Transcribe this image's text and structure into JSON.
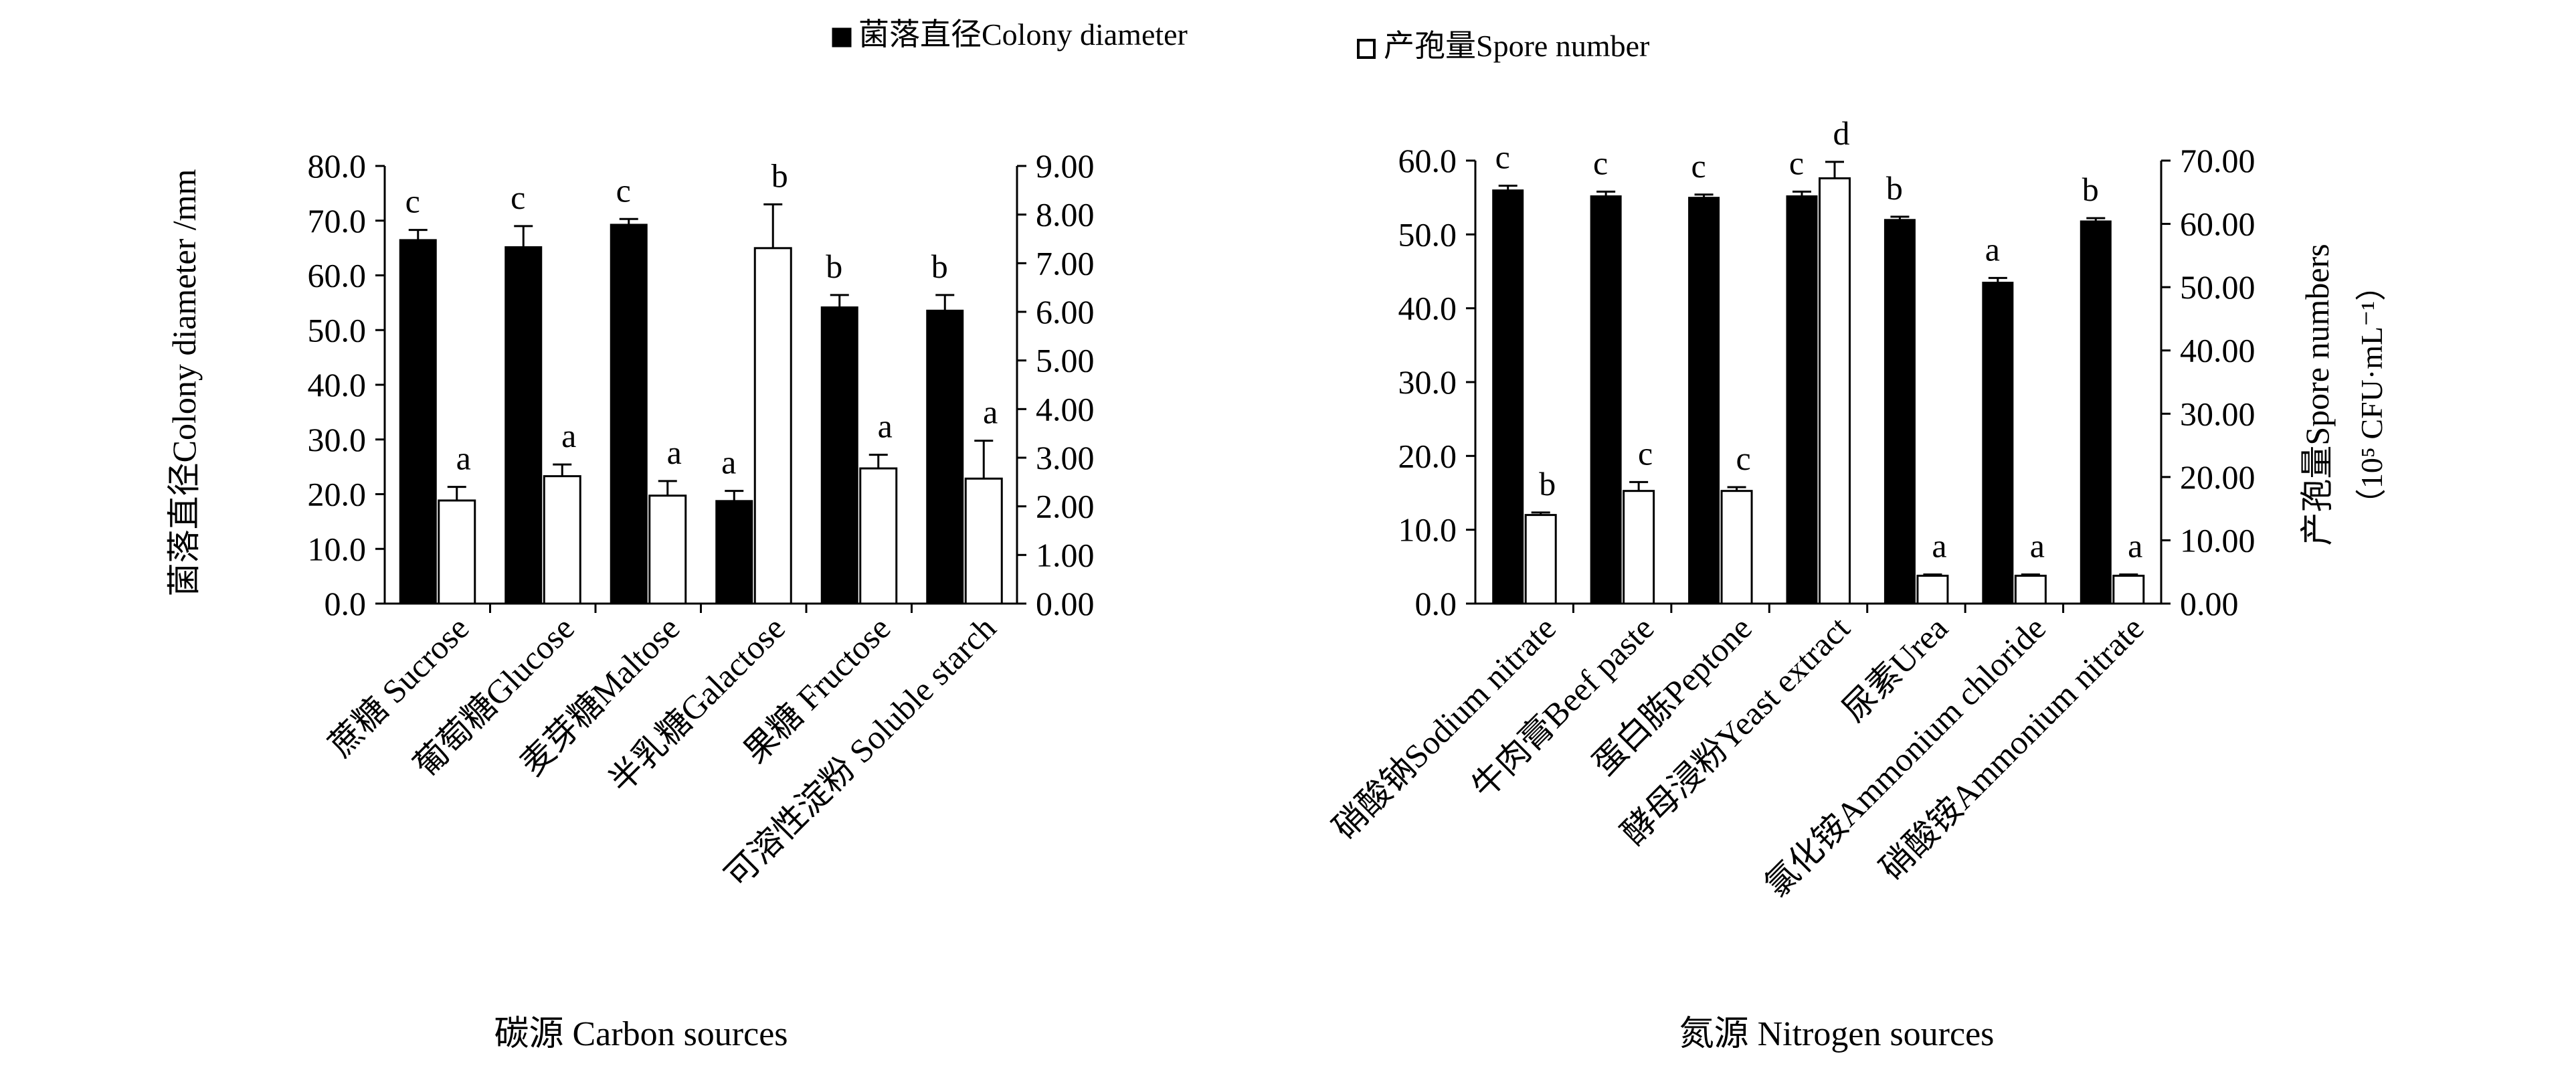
{
  "legend": {
    "items": [
      {
        "label": "菌落直径Colony diameter",
        "fill": "#000000"
      },
      {
        "label": "产孢量Spore number",
        "fill": "#ffffff"
      }
    ]
  },
  "chart_data": [
    {
      "type": "bar",
      "xlabel": "碳源 Carbon sources",
      "ylabel": "菌落直径Colony diameter /mm",
      "y2label": "",
      "y2label_unit": "",
      "ylim": [
        0,
        80
      ],
      "yticks": [
        "0.0",
        "10.0",
        "20.0",
        "30.0",
        "40.0",
        "50.0",
        "60.0",
        "70.0",
        "80.0"
      ],
      "y2lim": [
        0,
        9
      ],
      "y2ticks": [
        "0.00",
        "1.00",
        "2.00",
        "3.00",
        "4.00",
        "5.00",
        "6.00",
        "7.00",
        "8.00",
        "9.00"
      ],
      "categories": [
        "蔗糖 Sucrose",
        "葡萄糖Glucose",
        "麦芽糖Maltose",
        "半乳糖Galactose",
        "果糖 Fructose",
        "可溶性淀粉 Soluble starch"
      ],
      "series": [
        {
          "name": "菌落直径Colony diameter",
          "axis": "left",
          "fill": "#000000",
          "values": [
            66.5,
            65.2,
            69.3,
            18.8,
            54.2,
            53.6
          ],
          "errors": [
            1.8,
            3.8,
            1.0,
            1.8,
            2.2,
            2.8
          ],
          "letters": [
            "c",
            "c",
            "c",
            "a",
            "b",
            "b"
          ]
        },
        {
          "name": "产孢量Spore number",
          "axis": "right",
          "fill": "#ffffff",
          "values": [
            2.12,
            2.62,
            2.22,
            7.31,
            2.78,
            2.57
          ],
          "errors": [
            0.28,
            0.24,
            0.3,
            0.9,
            0.28,
            0.78
          ],
          "letters": [
            "a",
            "a",
            "a",
            "b",
            "a",
            "a"
          ]
        }
      ]
    },
    {
      "type": "bar",
      "xlabel": "氮源 Nitrogen sources",
      "ylabel": "",
      "y2label": "产孢量Spore numbers",
      "y2label_unit": "（10⁵ CFU·mL⁻¹）",
      "ylim": [
        0,
        60
      ],
      "yticks": [
        "0.0",
        "10.0",
        "20.0",
        "30.0",
        "40.0",
        "50.0",
        "60.0"
      ],
      "y2lim": [
        0,
        70
      ],
      "y2ticks": [
        "0.00",
        "10.00",
        "20.00",
        "30.00",
        "40.00",
        "50.00",
        "60.00",
        "70.00"
      ],
      "categories": [
        "硝酸钠Sodium nitrate",
        "牛肉膏Beef paste",
        "蛋白胨Peptone",
        "酵母浸粉Yeast extract",
        "尿素Urea",
        "氯化铵Ammonium chloride",
        "硝酸铵Ammonium nitrate"
      ],
      "series": [
        {
          "name": "菌落直径Colony diameter",
          "axis": "left",
          "fill": "#000000",
          "values": [
            56.0,
            55.2,
            55.0,
            55.2,
            52.0,
            43.5,
            51.8
          ],
          "errors": [
            0.6,
            0.6,
            0.4,
            0.6,
            0.4,
            0.6,
            0.4
          ],
          "letters": [
            "c",
            "c",
            "c",
            "c",
            "b",
            "a",
            "b"
          ]
        },
        {
          "name": "产孢量Spore number",
          "axis": "right",
          "fill": "#ffffff",
          "values": [
            14.0,
            17.8,
            17.8,
            67.2,
            4.4,
            4.4,
            4.4
          ],
          "errors": [
            0.4,
            1.4,
            0.6,
            2.6,
            0.2,
            0.2,
            0.2
          ],
          "letters": [
            "b",
            "c",
            "c",
            "d",
            "a",
            "a",
            "a"
          ]
        }
      ]
    }
  ]
}
